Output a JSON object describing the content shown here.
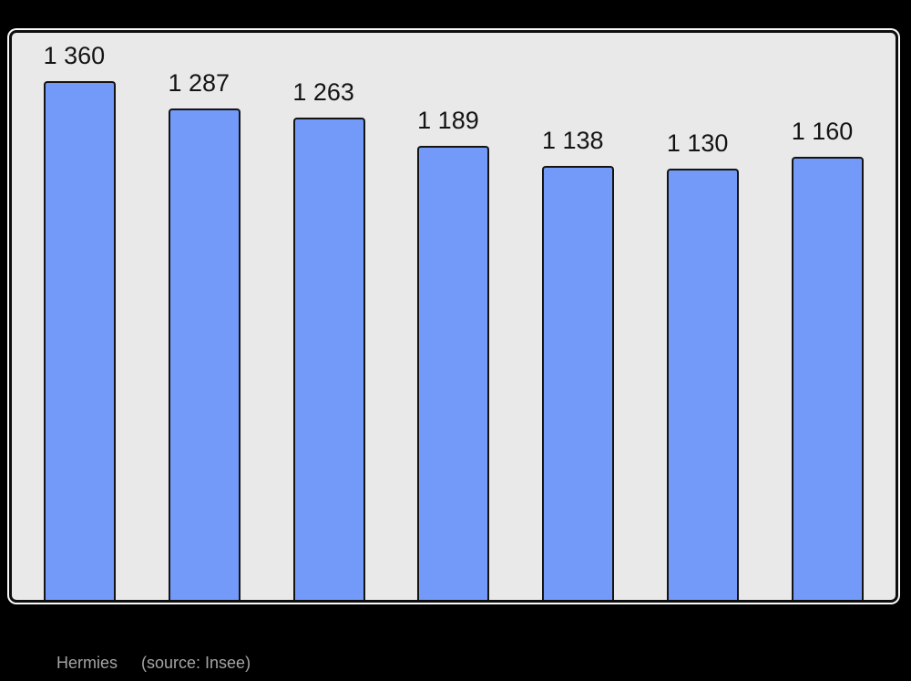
{
  "page": {
    "background_color": "#000000"
  },
  "chart_data": {
    "type": "bar",
    "title": "",
    "values": [
      1360,
      1287,
      1263,
      1189,
      1138,
      1130,
      1160
    ],
    "value_labels": [
      "1 360",
      "1 287",
      "1 263",
      "1 189",
      "1 138",
      "1 130",
      "1 160"
    ],
    "ylim": [
      0,
      1486
    ],
    "grid": false,
    "legend_position": "none",
    "data_labels_position": "above-bars",
    "bar_color": "#739af8",
    "bar_border_color": "#141414",
    "panel_background": "#e9e9e9",
    "panel_border_color": "#0e0e0e",
    "panel_outline_color": "#fafafa",
    "label_color": "#141414"
  },
  "caption": {
    "commune": "Hermies",
    "source": "(source: Insee)",
    "color": "#a4a4a4"
  }
}
